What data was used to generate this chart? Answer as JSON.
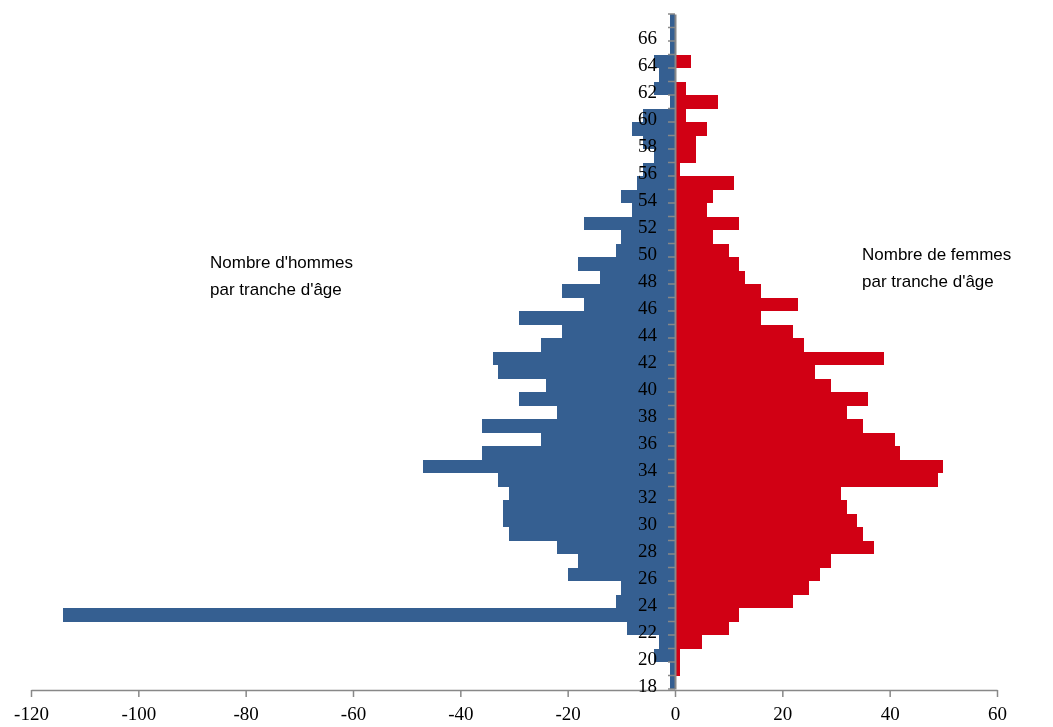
{
  "chart_data": {
    "type": "bar",
    "orientation": "horizontal",
    "stacked": true,
    "grid": false,
    "annotations": [
      "Nombre d'hommes par tranche d'âge",
      "Nombre de femmes par tranche d'âge"
    ],
    "categories": [
      null,
      "66",
      null,
      "64",
      null,
      "62",
      null,
      "60",
      null,
      "58",
      null,
      "56",
      null,
      "54",
      null,
      "52",
      null,
      "50",
      null,
      "48",
      null,
      "46",
      null,
      "44",
      null,
      "42",
      null,
      "40",
      null,
      "38",
      null,
      "36",
      null,
      "34",
      null,
      "32",
      null,
      "30",
      null,
      "28",
      null,
      "26",
      null,
      "24",
      null,
      "22",
      null,
      "20",
      null,
      "18"
    ],
    "series": [
      {
        "color": "#355f91",
        "values": [
          -1,
          -1,
          -1,
          -4,
          -3,
          -4,
          -1,
          -6,
          -8,
          -6,
          -4,
          -6,
          -7,
          -10,
          -8,
          -17,
          -10,
          -11,
          -18,
          -14,
          -21,
          -17,
          -29,
          -21,
          -25,
          -34,
          -33,
          -24,
          -29,
          -22,
          -36,
          -25,
          -36,
          -47,
          -33,
          -31,
          -32,
          -32,
          -31,
          -22,
          -18,
          -20,
          -10,
          -11,
          -114,
          -9,
          -3,
          -4,
          -1,
          -1
        ]
      },
      {
        "color": "#d10014",
        "values": [
          0,
          0,
          0,
          3,
          0,
          2,
          8,
          2,
          6,
          4,
          4,
          1,
          11,
          7,
          6,
          12,
          7,
          10,
          12,
          13,
          16,
          23,
          16,
          22,
          24,
          39,
          26,
          29,
          36,
          32,
          35,
          41,
          42,
          50,
          49,
          31,
          32,
          34,
          35,
          37,
          29,
          27,
          25,
          22,
          12,
          10,
          5,
          1,
          1,
          0
        ]
      }
    ],
    "xlim": [
      -120,
      60
    ],
    "xticks": [
      -120,
      -100,
      -80,
      -60,
      -40,
      -20,
      0,
      20,
      40,
      60
    ]
  }
}
